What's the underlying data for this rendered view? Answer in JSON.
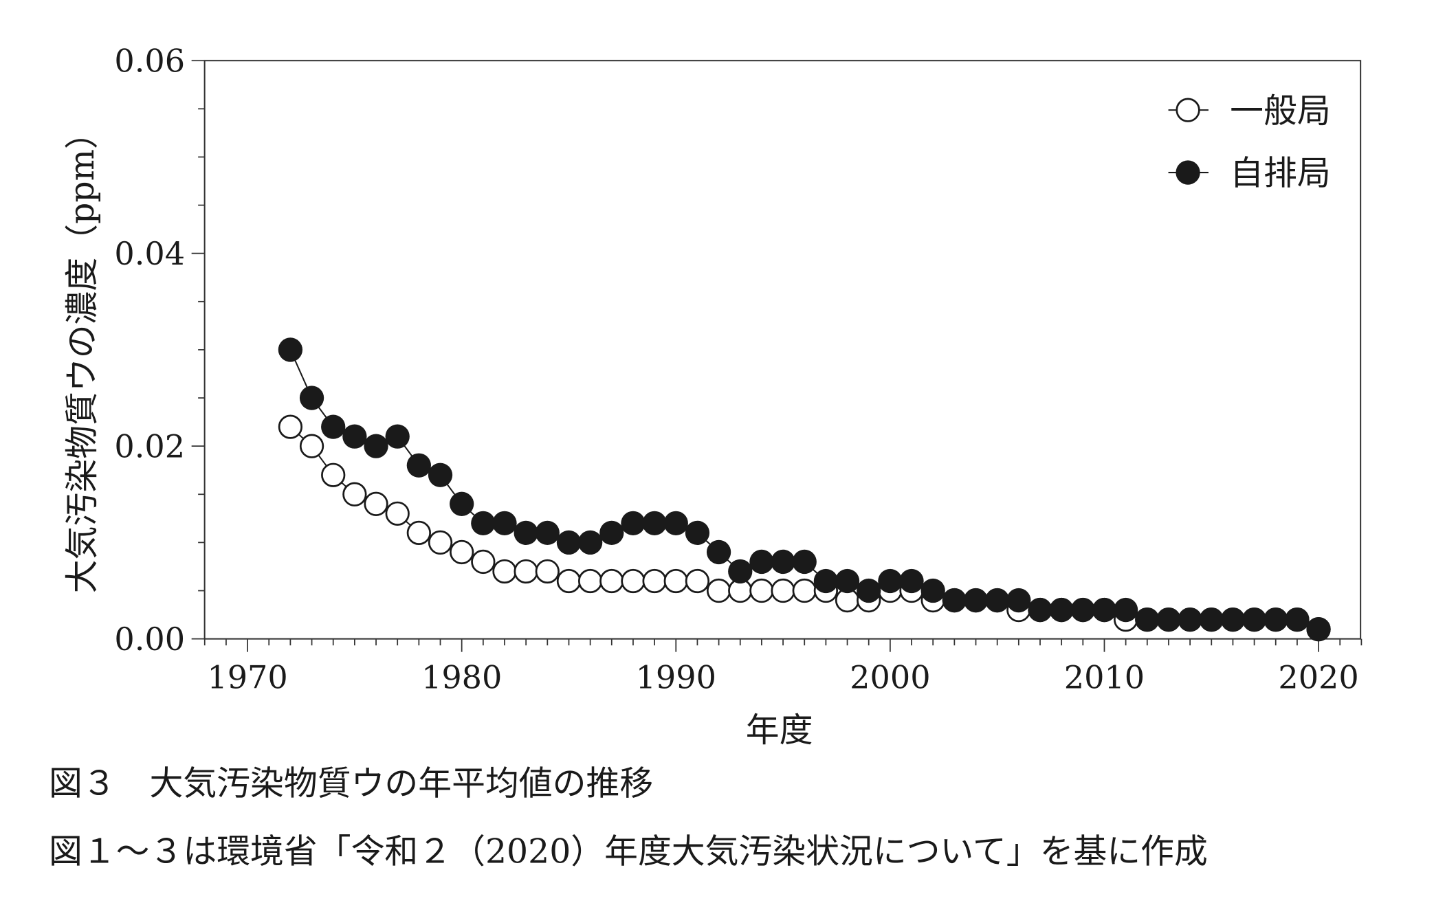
{
  "chart_data": {
    "type": "line",
    "title": "",
    "xlabel": "年度",
    "ylabel": "大気汚染物質ウの濃度（ppm）",
    "xlim": [
      1968,
      2022
    ],
    "ylim": [
      0,
      0.06
    ],
    "x_ticks": [
      1970,
      1980,
      1990,
      2000,
      2010,
      2020
    ],
    "x_tick_labels": [
      "1970",
      "1980",
      "1990",
      "2000",
      "2010",
      "2020"
    ],
    "y_ticks": [
      0,
      0.02,
      0.04,
      0.06
    ],
    "y_tick_labels": [
      "0.00",
      "0.02",
      "0.04",
      "0.06"
    ],
    "legend_position": "top-right",
    "x": [
      1972,
      1973,
      1974,
      1975,
      1976,
      1977,
      1978,
      1979,
      1980,
      1981,
      1982,
      1983,
      1984,
      1985,
      1986,
      1987,
      1988,
      1989,
      1990,
      1991,
      1992,
      1993,
      1994,
      1995,
      1996,
      1997,
      1998,
      1999,
      2000,
      2001,
      2002,
      2003,
      2004,
      2005,
      2006,
      2007,
      2008,
      2009,
      2010,
      2011,
      2012,
      2013,
      2014,
      2015,
      2016,
      2017,
      2018,
      2019,
      2020
    ],
    "series": [
      {
        "name": "一般局",
        "marker": "open-circle",
        "values": [
          0.022,
          0.02,
          0.017,
          0.015,
          0.014,
          0.013,
          0.011,
          0.01,
          0.009,
          0.008,
          0.007,
          0.007,
          0.007,
          0.006,
          0.006,
          0.006,
          0.006,
          0.006,
          0.006,
          0.006,
          0.005,
          0.005,
          0.005,
          0.005,
          0.005,
          0.005,
          0.004,
          0.004,
          0.005,
          0.005,
          0.004,
          0.004,
          0.004,
          0.004,
          0.003,
          0.003,
          0.003,
          0.003,
          0.003,
          0.002,
          0.002,
          0.002,
          0.002,
          0.002,
          0.002,
          0.002,
          0.002,
          0.002,
          0.001
        ]
      },
      {
        "name": "自排局",
        "marker": "filled-circle",
        "values": [
          0.03,
          0.025,
          0.022,
          0.021,
          0.02,
          0.021,
          0.018,
          0.017,
          0.014,
          0.012,
          0.012,
          0.011,
          0.011,
          0.01,
          0.01,
          0.011,
          0.012,
          0.012,
          0.012,
          0.011,
          0.009,
          0.007,
          0.008,
          0.008,
          0.008,
          0.006,
          0.006,
          0.005,
          0.006,
          0.006,
          0.005,
          0.004,
          0.004,
          0.004,
          0.004,
          0.003,
          0.003,
          0.003,
          0.003,
          0.003,
          0.002,
          0.002,
          0.002,
          0.002,
          0.002,
          0.002,
          0.002,
          0.002,
          0.001
        ]
      }
    ]
  },
  "caption": {
    "figure": "図３　大気汚染物質ウの年平均値の推移",
    "source": "図１～３は環境省「令和２（2020）年度大気汚染状況について」を基に作成"
  }
}
